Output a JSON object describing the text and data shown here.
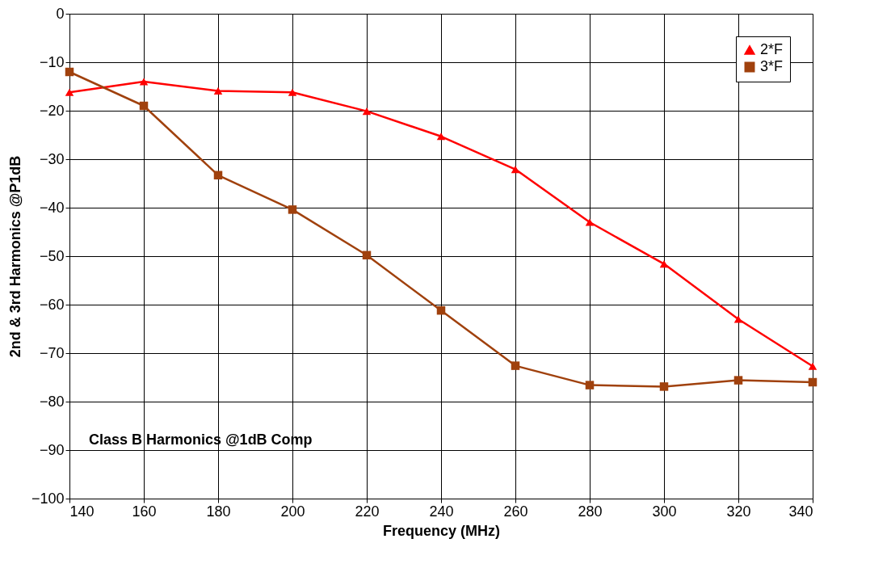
{
  "chart_data": {
    "type": "line",
    "xlabel": "Frequency (MHz)",
    "ylabel": "2nd & 3rd Harmonics @P1dB",
    "x": [
      140,
      160,
      180,
      200,
      220,
      240,
      260,
      280,
      300,
      320,
      340
    ],
    "series": [
      {
        "name": "2*F",
        "color": "#ff0000",
        "marker": "triangle",
        "values": [
          -16.2,
          -14,
          -15.9,
          -16.2,
          -20.1,
          -25.3,
          -32.1,
          -43,
          -51.6,
          -63,
          -72.7
        ]
      },
      {
        "name": "3*F",
        "color": "#a0410d",
        "marker": "square",
        "values": [
          -12,
          -19,
          -33.3,
          -40.4,
          -49.8,
          -61.2,
          -72.6,
          -76.6,
          -76.9,
          -75.6,
          -76
        ]
      }
    ],
    "xlim": [
      140,
      340
    ],
    "xticks": [
      140,
      160,
      180,
      200,
      220,
      240,
      260,
      280,
      300,
      320,
      340
    ],
    "ylim": [
      -100,
      0
    ],
    "yticks": [
      -100,
      -90,
      -80,
      -70,
      -60,
      -50,
      -40,
      -30,
      -20,
      -10,
      0
    ],
    "grid": true,
    "legend": "top right",
    "line_style": "solid",
    "annotations": [
      "Class B Harmonics @1dB Comp"
    ]
  }
}
